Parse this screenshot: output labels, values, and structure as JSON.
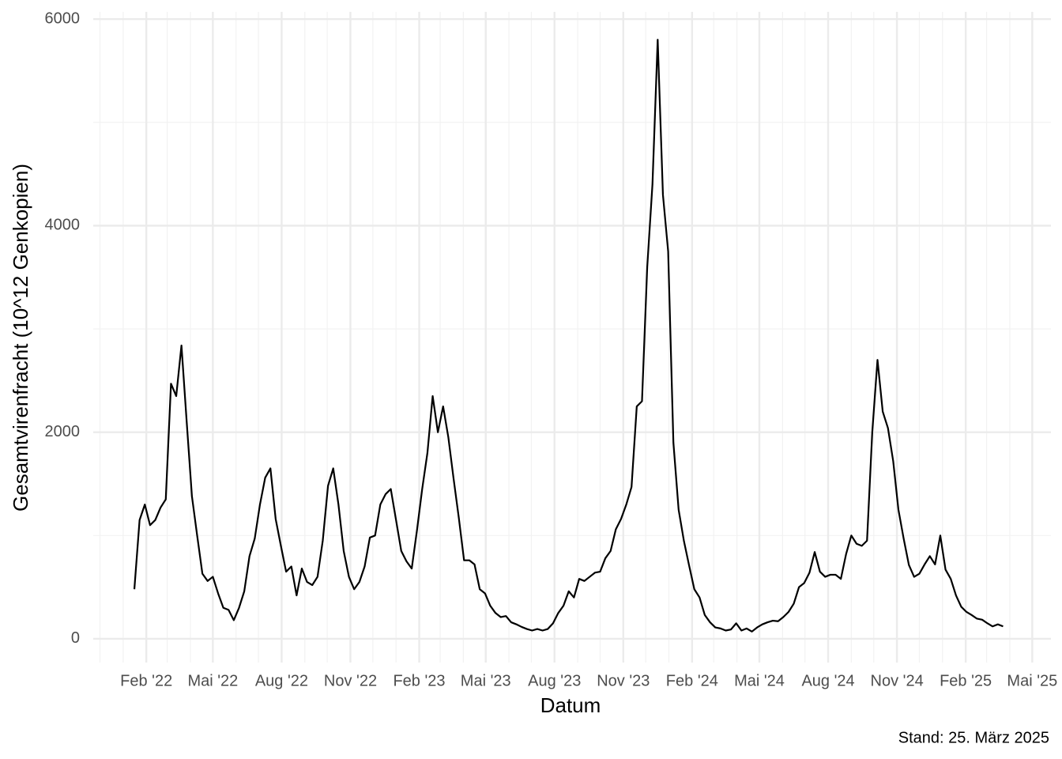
{
  "chart_data": {
    "type": "line",
    "x_label": "Datum",
    "y_label": "Gesamtvirenfracht (10^12 Genkopien)",
    "caption": "Stand: 25. März 2025",
    "color": "#000000",
    "grid": true,
    "xlim": [
      "2021-11-22",
      "2025-05-26"
    ],
    "ylim": [
      -230,
      6070
    ],
    "yticks": [
      0,
      2000,
      4000,
      6000
    ],
    "yminor_ticks": [
      1000,
      3000,
      5000
    ],
    "xticks": [
      {
        "value": "2022-02-01",
        "label": "Feb '22"
      },
      {
        "value": "2022-05-01",
        "label": "Mai '22"
      },
      {
        "value": "2022-08-01",
        "label": "Aug '22"
      },
      {
        "value": "2022-11-01",
        "label": "Nov '22"
      },
      {
        "value": "2023-02-01",
        "label": "Feb '23"
      },
      {
        "value": "2023-05-01",
        "label": "Mai '23"
      },
      {
        "value": "2023-08-01",
        "label": "Aug '23"
      },
      {
        "value": "2023-11-01",
        "label": "Nov '23"
      },
      {
        "value": "2024-02-01",
        "label": "Feb '24"
      },
      {
        "value": "2024-05-01",
        "label": "Mai '24"
      },
      {
        "value": "2024-08-01",
        "label": "Aug '24"
      },
      {
        "value": "2024-11-01",
        "label": "Nov '24"
      },
      {
        "value": "2025-02-01",
        "label": "Feb '25"
      },
      {
        "value": "2025-05-01",
        "label": "Mai '25"
      }
    ],
    "xminor_ticks": [
      "2021-12-01",
      "2022-01-01",
      "2022-03-01",
      "2022-04-01",
      "2022-06-01",
      "2022-07-01",
      "2022-09-01",
      "2022-10-01",
      "2022-12-01",
      "2023-01-01",
      "2023-03-01",
      "2023-04-01",
      "2023-06-01",
      "2023-07-01",
      "2023-09-01",
      "2023-10-01",
      "2023-12-01",
      "2024-01-01",
      "2024-03-01",
      "2024-04-01",
      "2024-06-01",
      "2024-07-01",
      "2024-09-01",
      "2024-10-01",
      "2024-12-01",
      "2025-01-01",
      "2025-03-01",
      "2025-04-01"
    ],
    "x": [
      "2022-01-16",
      "2022-01-23",
      "2022-01-30",
      "2022-02-06",
      "2022-02-13",
      "2022-02-20",
      "2022-02-27",
      "2022-03-06",
      "2022-03-13",
      "2022-03-20",
      "2022-03-27",
      "2022-04-03",
      "2022-04-10",
      "2022-04-17",
      "2022-04-24",
      "2022-05-01",
      "2022-05-08",
      "2022-05-15",
      "2022-05-22",
      "2022-05-29",
      "2022-06-05",
      "2022-06-12",
      "2022-06-19",
      "2022-06-26",
      "2022-07-03",
      "2022-07-10",
      "2022-07-17",
      "2022-07-24",
      "2022-07-31",
      "2022-08-07",
      "2022-08-14",
      "2022-08-21",
      "2022-08-28",
      "2022-09-04",
      "2022-09-11",
      "2022-09-18",
      "2022-09-25",
      "2022-10-02",
      "2022-10-09",
      "2022-10-16",
      "2022-10-23",
      "2022-10-30",
      "2022-11-06",
      "2022-11-13",
      "2022-11-20",
      "2022-11-27",
      "2022-12-04",
      "2022-12-11",
      "2022-12-18",
      "2022-12-25",
      "2023-01-01",
      "2023-01-08",
      "2023-01-15",
      "2023-01-22",
      "2023-01-29",
      "2023-02-05",
      "2023-02-12",
      "2023-02-19",
      "2023-02-26",
      "2023-03-05",
      "2023-03-12",
      "2023-03-19",
      "2023-03-26",
      "2023-04-02",
      "2023-04-09",
      "2023-04-16",
      "2023-04-23",
      "2023-04-30",
      "2023-05-07",
      "2023-05-14",
      "2023-05-21",
      "2023-05-28",
      "2023-06-04",
      "2023-06-11",
      "2023-06-18",
      "2023-06-25",
      "2023-07-02",
      "2023-07-09",
      "2023-07-16",
      "2023-07-23",
      "2023-07-30",
      "2023-08-06",
      "2023-08-13",
      "2023-08-20",
      "2023-08-27",
      "2023-09-03",
      "2023-09-10",
      "2023-09-17",
      "2023-09-24",
      "2023-10-01",
      "2023-10-08",
      "2023-10-15",
      "2023-10-22",
      "2023-10-29",
      "2023-11-05",
      "2023-11-12",
      "2023-11-19",
      "2023-11-26",
      "2023-12-03",
      "2023-12-10",
      "2023-12-17",
      "2023-12-24",
      "2023-12-31",
      "2024-01-07",
      "2024-01-14",
      "2024-01-21",
      "2024-01-28",
      "2024-02-04",
      "2024-02-11",
      "2024-02-18",
      "2024-02-25",
      "2024-03-03",
      "2024-03-10",
      "2024-03-17",
      "2024-03-24",
      "2024-03-31",
      "2024-04-07",
      "2024-04-14",
      "2024-04-21",
      "2024-04-28",
      "2024-05-05",
      "2024-05-12",
      "2024-05-19",
      "2024-05-26",
      "2024-06-02",
      "2024-06-09",
      "2024-06-16",
      "2024-06-23",
      "2024-06-30",
      "2024-07-07",
      "2024-07-14",
      "2024-07-21",
      "2024-07-28",
      "2024-08-04",
      "2024-08-11",
      "2024-08-18",
      "2024-08-25",
      "2024-09-01",
      "2024-09-08",
      "2024-09-15",
      "2024-09-22",
      "2024-09-29",
      "2024-10-06",
      "2024-10-13",
      "2024-10-20",
      "2024-10-27",
      "2024-11-03",
      "2024-11-10",
      "2024-11-17",
      "2024-11-24",
      "2024-12-01",
      "2024-12-08",
      "2024-12-15",
      "2024-12-22",
      "2024-12-29",
      "2025-01-05",
      "2025-01-12",
      "2025-01-19",
      "2025-01-26",
      "2025-02-02",
      "2025-02-09",
      "2025-02-16",
      "2025-02-23",
      "2025-03-02",
      "2025-03-09",
      "2025-03-16",
      "2025-03-23"
    ],
    "values": [
      480,
      1150,
      1300,
      1100,
      1150,
      1270,
      1350,
      2470,
      2350,
      2840,
      2100,
      1380,
      1000,
      630,
      560,
      600,
      440,
      300,
      280,
      180,
      300,
      460,
      800,
      970,
      1300,
      1560,
      1650,
      1160,
      900,
      650,
      700,
      420,
      680,
      550,
      520,
      600,
      950,
      1480,
      1650,
      1300,
      850,
      600,
      480,
      550,
      700,
      980,
      1000,
      1300,
      1400,
      1450,
      1150,
      850,
      750,
      680,
      1050,
      1450,
      1800,
      2350,
      2000,
      2250,
      1950,
      1550,
      1170,
      760,
      760,
      720,
      480,
      440,
      320,
      250,
      210,
      220,
      160,
      140,
      115,
      95,
      80,
      95,
      80,
      95,
      150,
      250,
      320,
      460,
      400,
      580,
      560,
      600,
      640,
      650,
      780,
      850,
      1060,
      1160,
      1300,
      1470,
      2250,
      2300,
      3600,
      4400,
      5800,
      4300,
      3750,
      1900,
      1250,
      950,
      710,
      480,
      400,
      230,
      160,
      110,
      100,
      80,
      90,
      150,
      80,
      100,
      70,
      110,
      140,
      160,
      175,
      170,
      210,
      260,
      340,
      500,
      540,
      640,
      840,
      650,
      600,
      620,
      620,
      580,
      820,
      1000,
      920,
      900,
      950,
      2000,
      2700,
      2200,
      2040,
      1720,
      1250,
      970,
      715,
      600,
      630,
      720,
      800,
      720,
      1000,
      670,
      580,
      420,
      310,
      260,
      230,
      195,
      185,
      150,
      120,
      140,
      120
    ]
  }
}
